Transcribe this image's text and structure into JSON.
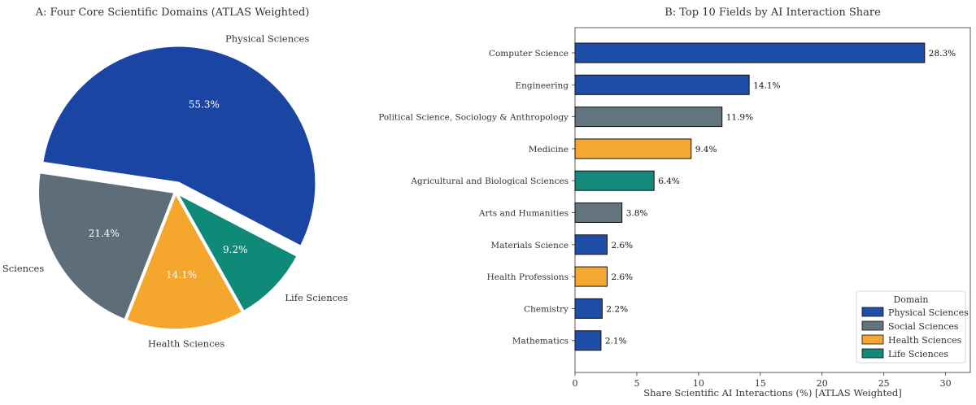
{
  "colors": {
    "physical": "#1f4ea8",
    "social": "#64747f",
    "health": "#f4a731",
    "life": "#13897a"
  },
  "chart_data": [
    {
      "type": "pie",
      "title": "A: Four Core Scientific Domains (ATLAS Weighted)",
      "slices": [
        {
          "label": "Physical Sciences",
          "value": 55.3,
          "value_label": "55.3%",
          "color": "#1b45a3",
          "exploded": true
        },
        {
          "label": "Social Sciences",
          "value": 21.4,
          "value_label": "21.4%",
          "color": "#5d6e79",
          "exploded": false
        },
        {
          "label": "Health Sciences",
          "value": 14.1,
          "value_label": "14.1%",
          "color": "#f5a62c",
          "exploded": false
        },
        {
          "label": "Life Sciences",
          "value": 9.2,
          "value_label": "9.2%",
          "color": "#0f8a78",
          "exploded": false
        }
      ]
    },
    {
      "type": "bar",
      "orientation": "horizontal",
      "title": "B: Top 10 Fields by AI Interaction Share",
      "xlabel": "Share Scientific AI Interactions (%) [ATLAS Weighted]",
      "xlim": [
        0,
        32
      ],
      "xticks": [
        0,
        5,
        10,
        15,
        20,
        25,
        30
      ],
      "categories": [
        "Computer Science",
        "Engineering",
        "Political Science, Sociology & Anthropology",
        "Medicine",
        "Agricultural and Biological Sciences",
        "Arts and Humanities",
        "Materials Science",
        "Health Professions",
        "Chemistry",
        "Mathematics"
      ],
      "values": [
        28.3,
        14.1,
        11.9,
        9.4,
        6.4,
        3.8,
        2.6,
        2.6,
        2.2,
        2.1
      ],
      "value_labels": [
        "28.3%",
        "14.1%",
        "11.9%",
        "9.4%",
        "6.4%",
        "3.8%",
        "2.6%",
        "2.6%",
        "2.2%",
        "2.1%"
      ],
      "domains": [
        "Physical Sciences",
        "Physical Sciences",
        "Social Sciences",
        "Health Sciences",
        "Life Sciences",
        "Social Sciences",
        "Physical Sciences",
        "Health Sciences",
        "Physical Sciences",
        "Physical Sciences"
      ],
      "legend": {
        "title": "Domain",
        "placement": "bottom-right",
        "entries": [
          "Physical Sciences",
          "Social Sciences",
          "Health Sciences",
          "Life Sciences"
        ]
      }
    }
  ]
}
